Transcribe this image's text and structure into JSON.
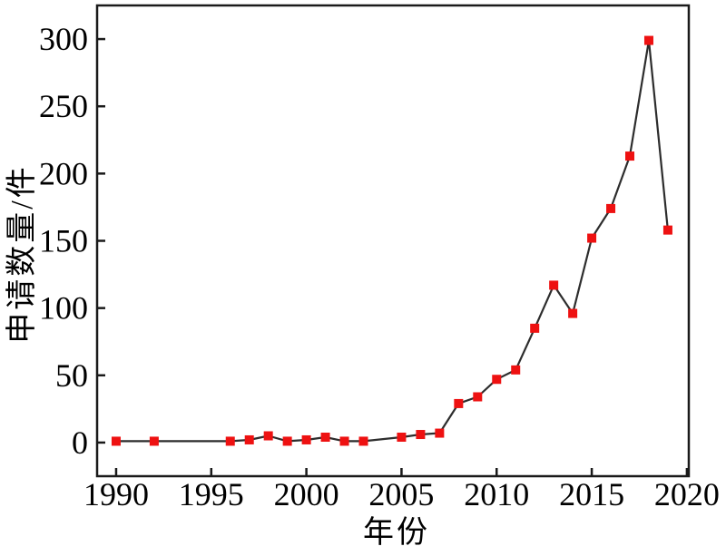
{
  "figure": {
    "background": "#ffffff"
  },
  "chart_data": {
    "type": "line",
    "title": "",
    "xlabel": "年份",
    "ylabel": "申请数量/件",
    "series": [
      {
        "name": "申请数量",
        "x": [
          1990,
          1992,
          1996,
          1997,
          1998,
          1999,
          2000,
          2001,
          2002,
          2003,
          2005,
          2006,
          2007,
          2008,
          2009,
          2010,
          2011,
          2012,
          2013,
          2014,
          2015,
          2016,
          2017,
          2018,
          2019
        ],
        "y": [
          1,
          1,
          1,
          2,
          5,
          1,
          2,
          4,
          1,
          1,
          4,
          6,
          7,
          29,
          34,
          47,
          54,
          85,
          117,
          96,
          152,
          174,
          213,
          299,
          158
        ]
      }
    ],
    "x_ticks": [
      1990,
      1995,
      2000,
      2005,
      2010,
      2015,
      2020
    ],
    "y_ticks": [
      0,
      50,
      100,
      150,
      200,
      250,
      300
    ],
    "xlim": [
      1989.0,
      2020.1
    ],
    "ylim": [
      -25,
      325
    ],
    "grid": false,
    "legend": "none",
    "line_color": "#2d2d2d",
    "marker_shape": "square",
    "marker_color": "#ee1111",
    "axis_color": "#1a1a1a",
    "text_color": "#000000"
  }
}
